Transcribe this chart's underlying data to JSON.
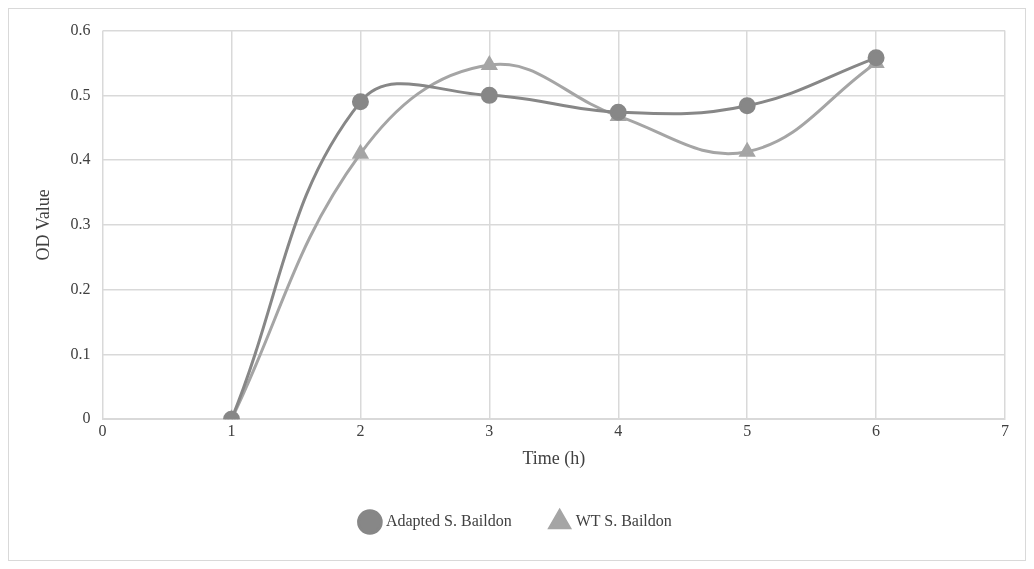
{
  "chart_data": {
    "type": "line",
    "xlabel": "Time (h)",
    "ylabel": "OD Value",
    "x": [
      1,
      2,
      3,
      4,
      5,
      6
    ],
    "series": [
      {
        "name": "WT S. Baildon",
        "color": "#a5a5a5",
        "marker": "triangle",
        "values": [
          0,
          0.41,
          0.547,
          0.468,
          0.413,
          0.55
        ]
      },
      {
        "name": "Adapted S. Baildon",
        "color": "#878787",
        "marker": "circle",
        "values": [
          0,
          0.49,
          0.5,
          0.474,
          0.484,
          0.558
        ]
      }
    ],
    "xlim": [
      0,
      7
    ],
    "xticks": [
      0,
      1,
      2,
      3,
      4,
      5,
      6,
      7
    ],
    "ylim": [
      0,
      0.6
    ],
    "yticks": [
      0,
      0.1,
      0.2,
      0.3,
      0.4,
      0.5,
      0.6
    ],
    "grid": true,
    "legend": "bottom"
  }
}
